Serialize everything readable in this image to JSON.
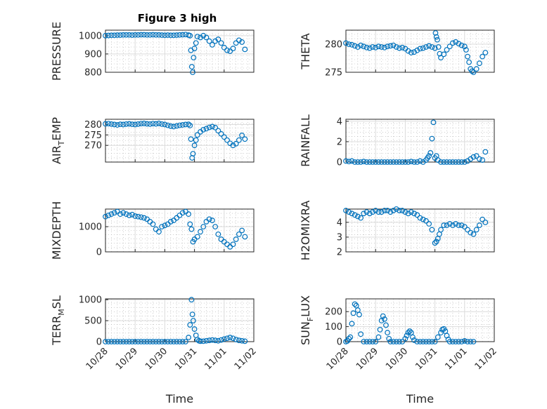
{
  "figure": {
    "title": "Figure 3 high"
  },
  "x_tick_labels": [
    "10/28",
    "10/29",
    "10/30",
    "10/31",
    "11/01",
    "11/02"
  ],
  "colors": {
    "marker": "#0072BD",
    "axis": "#262626",
    "grid": "#b0b0b0"
  },
  "chart_data": [
    {
      "type": "scatter",
      "ylabel": "PRESSURE",
      "ylim": [
        800,
        1030
      ],
      "yticks": [
        800,
        900,
        1000
      ],
      "xlabel": "",
      "title": "Figure 3 high",
      "grid": true,
      "series": [
        {
          "x": [
            0.0,
            0.1,
            0.2,
            0.3,
            0.4,
            0.5,
            0.6,
            0.7,
            0.8,
            0.9,
            1.0,
            1.1,
            1.2,
            1.3,
            1.4,
            1.5,
            1.6,
            1.7,
            1.8,
            1.9,
            2.0,
            2.1,
            2.2,
            2.3,
            2.4,
            2.5,
            2.6,
            2.7,
            2.8,
            2.85,
            2.88,
            2.91,
            2.94,
            2.97,
            3.0,
            3.05,
            3.1,
            3.2,
            3.3,
            3.4,
            3.5,
            3.6,
            3.7,
            3.8,
            3.9,
            4.0,
            4.1,
            4.2,
            4.3,
            4.4,
            4.5,
            4.6,
            4.7
          ],
          "y": [
            1000,
            1001,
            1002,
            1002,
            1003,
            1003,
            1004,
            1004,
            1004,
            1003,
            1004,
            1004,
            1005,
            1005,
            1004,
            1004,
            1005,
            1004,
            1004,
            1003,
            1002,
            1003,
            1002,
            1002,
            1003,
            1004,
            1005,
            1006,
            1003,
            1000,
            920,
            830,
            800,
            880,
            930,
            960,
            995,
            990,
            1000,
            990,
            970,
            950,
            970,
            980,
            960,
            935,
            920,
            915,
            930,
            960,
            975,
            965,
            925
          ]
        }
      ]
    },
    {
      "type": "scatter",
      "ylabel": "THETA",
      "ylim": [
        275,
        282.5
      ],
      "yticks": [
        275,
        280
      ],
      "xlabel": "",
      "grid": true,
      "series": [
        {
          "x": [
            0.0,
            0.1,
            0.2,
            0.3,
            0.4,
            0.5,
            0.6,
            0.7,
            0.8,
            0.9,
            1.0,
            1.1,
            1.2,
            1.3,
            1.4,
            1.5,
            1.6,
            1.7,
            1.8,
            1.9,
            2.0,
            2.1,
            2.2,
            2.3,
            2.4,
            2.5,
            2.6,
            2.7,
            2.8,
            2.9,
            3.0,
            3.02,
            3.05,
            3.08,
            3.12,
            3.16,
            3.2,
            3.3,
            3.4,
            3.5,
            3.6,
            3.7,
            3.8,
            3.9,
            4.0,
            4.05,
            4.1,
            4.15,
            4.2,
            4.25,
            4.3,
            4.4,
            4.5,
            4.6,
            4.7
          ],
          "y": [
            280.2,
            280.0,
            279.9,
            279.7,
            279.5,
            279.8,
            279.6,
            279.4,
            279.3,
            279.5,
            279.4,
            279.6,
            279.5,
            279.4,
            279.6,
            279.7,
            279.8,
            279.5,
            279.3,
            279.4,
            279.2,
            278.8,
            278.5,
            278.6,
            278.9,
            279.2,
            279.3,
            279.5,
            279.7,
            279.5,
            279.3,
            282.0,
            281.3,
            280.8,
            279.5,
            278.3,
            277.6,
            278.2,
            279.0,
            279.6,
            280.2,
            280.4,
            280.1,
            279.8,
            279.6,
            279.0,
            277.8,
            276.8,
            275.6,
            275.2,
            275.0,
            275.6,
            276.6,
            277.8,
            278.5
          ]
        }
      ]
    },
    {
      "type": "scatter",
      "ylabel": "AIR_TEMP",
      "ylim": [
        262,
        282.5
      ],
      "yticks": [
        270,
        275,
        280
      ],
      "xlabel": "",
      "grid": true,
      "series": [
        {
          "x": [
            0.0,
            0.1,
            0.2,
            0.3,
            0.4,
            0.5,
            0.6,
            0.7,
            0.8,
            0.9,
            1.0,
            1.1,
            1.2,
            1.3,
            1.4,
            1.5,
            1.6,
            1.7,
            1.8,
            1.9,
            2.0,
            2.1,
            2.2,
            2.3,
            2.4,
            2.5,
            2.6,
            2.7,
            2.8,
            2.85,
            2.88,
            2.92,
            2.95,
            3.0,
            3.05,
            3.1,
            3.2,
            3.3,
            3.4,
            3.5,
            3.6,
            3.7,
            3.8,
            3.9,
            4.0,
            4.1,
            4.2,
            4.3,
            4.4,
            4.5,
            4.6,
            4.7
          ],
          "y": [
            280.3,
            280.4,
            280.2,
            280.0,
            279.8,
            280.1,
            280.0,
            280.2,
            280.3,
            280.1,
            280.0,
            280.2,
            280.4,
            280.5,
            280.3,
            280.2,
            280.4,
            280.3,
            280.5,
            280.2,
            280.0,
            279.6,
            279.2,
            279.0,
            279.3,
            279.6,
            279.8,
            280.0,
            280.1,
            279.5,
            273.0,
            264.0,
            266.0,
            270.0,
            272.5,
            275.0,
            276.5,
            277.5,
            278.0,
            278.6,
            279.0,
            278.5,
            277.0,
            275.5,
            274.0,
            272.5,
            271.0,
            270.0,
            270.8,
            272.5,
            274.8,
            273.0
          ]
        }
      ]
    },
    {
      "type": "scatter",
      "ylabel": "RAINFALL",
      "ylim": [
        0,
        4.2
      ],
      "yticks": [
        0,
        2,
        4
      ],
      "xlabel": "",
      "grid": true,
      "series": [
        {
          "x": [
            0.0,
            0.1,
            0.2,
            0.3,
            0.4,
            0.5,
            0.6,
            0.7,
            0.8,
            0.9,
            1.0,
            1.1,
            1.2,
            1.3,
            1.4,
            1.5,
            1.6,
            1.7,
            1.8,
            1.9,
            2.0,
            2.1,
            2.2,
            2.3,
            2.4,
            2.5,
            2.6,
            2.7,
            2.75,
            2.8,
            2.85,
            2.9,
            2.95,
            3.0,
            3.05,
            3.1,
            3.2,
            3.3,
            3.4,
            3.5,
            3.6,
            3.7,
            3.8,
            3.9,
            4.0,
            4.1,
            4.2,
            4.3,
            4.4,
            4.5,
            4.6,
            4.7
          ],
          "y": [
            0.1,
            0.05,
            0.1,
            0.0,
            0.0,
            0.0,
            0.05,
            0.0,
            0.0,
            0.0,
            0.0,
            0.0,
            0.0,
            0.0,
            0.0,
            0.0,
            0.0,
            0.0,
            0.0,
            0.0,
            0.0,
            0.0,
            0.05,
            0.0,
            0.0,
            0.1,
            0.0,
            0.2,
            0.4,
            0.6,
            0.9,
            2.3,
            3.9,
            0.4,
            0.6,
            0.2,
            0.0,
            0.0,
            0.0,
            0.0,
            0.0,
            0.0,
            0.0,
            0.0,
            0.0,
            0.1,
            0.3,
            0.5,
            0.6,
            0.3,
            0.2,
            1.0
          ]
        }
      ]
    },
    {
      "type": "scatter",
      "ylabel": "MIXDEPTH",
      "ylim": [
        0,
        1700
      ],
      "yticks": [
        0,
        1000
      ],
      "xlabel": "",
      "grid": true,
      "series": [
        {
          "x": [
            0.0,
            0.1,
            0.2,
            0.3,
            0.4,
            0.5,
            0.6,
            0.7,
            0.8,
            0.9,
            1.0,
            1.1,
            1.2,
            1.3,
            1.4,
            1.5,
            1.6,
            1.7,
            1.8,
            1.9,
            2.0,
            2.1,
            2.2,
            2.3,
            2.4,
            2.5,
            2.6,
            2.7,
            2.8,
            2.85,
            2.9,
            2.95,
            3.0,
            3.1,
            3.2,
            3.3,
            3.4,
            3.5,
            3.6,
            3.7,
            3.8,
            3.9,
            4.0,
            4.1,
            4.2,
            4.3,
            4.4,
            4.5,
            4.6,
            4.7
          ],
          "y": [
            1400,
            1450,
            1500,
            1550,
            1600,
            1500,
            1550,
            1500,
            1450,
            1480,
            1420,
            1400,
            1380,
            1350,
            1300,
            1200,
            1100,
            900,
            800,
            1000,
            1050,
            1100,
            1200,
            1250,
            1350,
            1450,
            1550,
            1600,
            1500,
            1100,
            900,
            400,
            500,
            600,
            800,
            1000,
            1200,
            1300,
            1250,
            1000,
            700,
            500,
            400,
            300,
            200,
            300,
            500,
            700,
            850,
            600
          ]
        }
      ]
    },
    {
      "type": "scatter",
      "ylabel": "H2OMIXRA",
      "ylim": [
        2,
        4.9
      ],
      "yticks": [
        2,
        3,
        4
      ],
      "xlabel": "",
      "grid": true,
      "series": [
        {
          "x": [
            0.0,
            0.1,
            0.2,
            0.3,
            0.4,
            0.5,
            0.6,
            0.7,
            0.8,
            0.9,
            1.0,
            1.1,
            1.2,
            1.3,
            1.4,
            1.5,
            1.6,
            1.7,
            1.8,
            1.9,
            2.0,
            2.1,
            2.2,
            2.3,
            2.4,
            2.5,
            2.6,
            2.7,
            2.8,
            2.9,
            3.0,
            3.05,
            3.1,
            3.15,
            3.2,
            3.3,
            3.4,
            3.5,
            3.6,
            3.7,
            3.8,
            3.9,
            4.0,
            4.1,
            4.2,
            4.3,
            4.4,
            4.5,
            4.6,
            4.7
          ],
          "y": [
            4.8,
            4.7,
            4.6,
            4.5,
            4.4,
            4.3,
            4.6,
            4.7,
            4.6,
            4.7,
            4.8,
            4.7,
            4.7,
            4.8,
            4.8,
            4.7,
            4.8,
            4.9,
            4.8,
            4.8,
            4.7,
            4.6,
            4.7,
            4.6,
            4.5,
            4.3,
            4.2,
            4.1,
            3.9,
            3.5,
            2.6,
            2.7,
            2.9,
            3.2,
            3.5,
            3.8,
            3.8,
            3.9,
            3.8,
            3.9,
            3.8,
            3.8,
            3.7,
            3.5,
            3.3,
            3.2,
            3.5,
            3.8,
            4.2,
            4.0
          ]
        }
      ]
    },
    {
      "type": "scatter",
      "ylabel": "TERR_MSL",
      "ylim": [
        0,
        1020
      ],
      "yticks": [
        0,
        500,
        1000
      ],
      "xlabel": "Time",
      "grid": true,
      "series": [
        {
          "x": [
            0.0,
            0.1,
            0.2,
            0.3,
            0.4,
            0.5,
            0.6,
            0.7,
            0.8,
            0.9,
            1.0,
            1.1,
            1.2,
            1.3,
            1.4,
            1.5,
            1.6,
            1.7,
            1.8,
            1.9,
            2.0,
            2.1,
            2.2,
            2.3,
            2.4,
            2.5,
            2.6,
            2.7,
            2.8,
            2.85,
            2.9,
            2.93,
            2.96,
            3.0,
            3.05,
            3.1,
            3.15,
            3.2,
            3.3,
            3.4,
            3.5,
            3.6,
            3.7,
            3.8,
            3.9,
            4.0,
            4.1,
            4.2,
            4.3,
            4.4,
            4.5,
            4.6,
            4.7
          ],
          "y": [
            0,
            0,
            0,
            0,
            0,
            0,
            0,
            0,
            0,
            0,
            0,
            0,
            0,
            0,
            0,
            0,
            0,
            0,
            0,
            0,
            0,
            0,
            0,
            0,
            0,
            0,
            0,
            0,
            100,
            400,
            1000,
            650,
            500,
            300,
            150,
            50,
            20,
            10,
            10,
            20,
            30,
            40,
            30,
            20,
            40,
            60,
            80,
            100,
            80,
            50,
            30,
            20,
            10
          ]
        }
      ]
    },
    {
      "type": "scatter",
      "ylabel": "SUN_FLUX",
      "ylim": [
        0,
        285
      ],
      "yticks": [
        0,
        100,
        200
      ],
      "xlabel": "Time",
      "grid": true,
      "series": [
        {
          "x": [
            0.0,
            0.05,
            0.1,
            0.15,
            0.2,
            0.25,
            0.3,
            0.35,
            0.4,
            0.45,
            0.5,
            0.6,
            0.7,
            0.8,
            0.9,
            1.0,
            1.1,
            1.15,
            1.2,
            1.25,
            1.3,
            1.35,
            1.4,
            1.45,
            1.5,
            1.6,
            1.7,
            1.8,
            1.9,
            2.0,
            2.05,
            2.1,
            2.15,
            2.2,
            2.25,
            2.3,
            2.4,
            2.5,
            2.6,
            2.7,
            2.8,
            2.9,
            3.0,
            3.1,
            3.2,
            3.25,
            3.3,
            3.35,
            3.4,
            3.45,
            3.5,
            3.6,
            3.7,
            3.8,
            3.9,
            4.0,
            4.1,
            4.2,
            4.3
          ],
          "y": [
            0,
            5,
            20,
            30,
            120,
            190,
            250,
            240,
            210,
            180,
            50,
            0,
            0,
            0,
            0,
            0,
            30,
            80,
            140,
            170,
            150,
            110,
            60,
            20,
            0,
            0,
            0,
            0,
            0,
            20,
            40,
            60,
            70,
            60,
            30,
            10,
            0,
            0,
            0,
            0,
            0,
            0,
            0,
            30,
            60,
            80,
            85,
            70,
            40,
            15,
            0,
            0,
            0,
            0,
            0,
            5,
            0,
            0,
            0
          ]
        }
      ]
    }
  ]
}
